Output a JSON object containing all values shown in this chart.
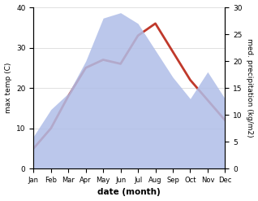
{
  "months": [
    "Jan",
    "Feb",
    "Mar",
    "Apr",
    "May",
    "Jun",
    "Jul",
    "Aug",
    "Sep",
    "Oct",
    "Nov",
    "Dec"
  ],
  "temp": [
    5,
    10,
    18,
    25,
    27,
    26,
    33,
    36,
    29,
    22,
    17,
    12
  ],
  "precip": [
    6,
    11,
    14,
    20,
    28,
    29,
    27,
    22,
    17,
    13,
    18,
    13
  ],
  "temp_color": "#c0392b",
  "precip_color_fill": "#b0bee8",
  "ylabel_left": "max temp (C)",
  "ylabel_right": "med. precipitation (kg/m2)",
  "xlabel": "date (month)",
  "ylim_left": [
    0,
    40
  ],
  "ylim_right": [
    0,
    30
  ],
  "yticks_left": [
    0,
    10,
    20,
    30,
    40
  ],
  "yticks_right": [
    0,
    5,
    10,
    15,
    20,
    25,
    30
  ],
  "background_color": "#ffffff",
  "temp_linewidth": 2.0
}
